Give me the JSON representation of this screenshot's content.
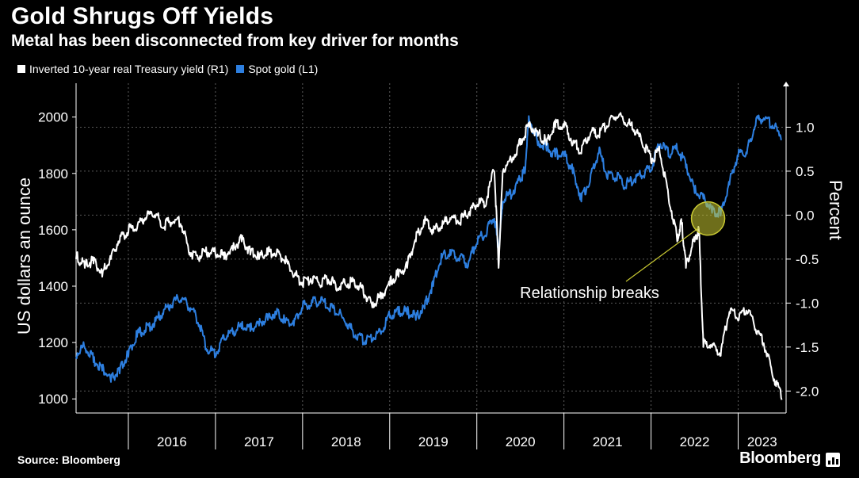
{
  "header": {
    "title": "Gold Shrugs Off Yields",
    "subtitle": "Metal has been disconnected from key driver for months"
  },
  "legend": {
    "yield_label": "Inverted 10-year real Treasury yield (R1)",
    "gold_label": "Spot gold (L1)"
  },
  "footer": {
    "source": "Source: Bloomberg",
    "brand": "Bloomberg"
  },
  "colors": {
    "background": "#000000",
    "gold_series": "#2d7fe0",
    "yield_series": "#ffffff",
    "annotation_circle": "#c8c832",
    "grid": "#5a5a5a"
  },
  "chart_data": {
    "type": "line",
    "title": "Gold Shrugs Off Yields",
    "subtitle": "Metal has been disconnected from key driver for months",
    "xlabel": "",
    "ylabel_left": "US dollars an ounce",
    "ylabel_right": "Percent",
    "x_range": [
      2015.4,
      2023.55
    ],
    "ylim_left": [
      950,
      2120
    ],
    "ylim_right": [
      -2.25,
      1.5
    ],
    "left_ticks": [
      1000,
      1200,
      1400,
      1600,
      1800,
      2000
    ],
    "right_ticks": [
      -2.0,
      -1.5,
      -1.0,
      -0.5,
      0.0,
      0.5,
      1.0
    ],
    "right_tick_labels": [
      "-2.0",
      "-1.5",
      "-1.0",
      "-0.5",
      "0.0",
      "0.5",
      "1.0"
    ],
    "year_labels": [
      "2016",
      "2017",
      "2018",
      "2019",
      "2020",
      "2021",
      "2022",
      "2023"
    ],
    "series": [
      {
        "name": "Spot gold (L1)",
        "axis": "left",
        "x": [
          2015.4,
          2015.5,
          2015.6,
          2015.7,
          2015.8,
          2015.9,
          2016.0,
          2016.1,
          2016.2,
          2016.3,
          2016.4,
          2016.5,
          2016.6,
          2016.7,
          2016.8,
          2016.9,
          2017.0,
          2017.1,
          2017.2,
          2017.3,
          2017.4,
          2017.5,
          2017.6,
          2017.7,
          2017.8,
          2017.9,
          2018.0,
          2018.1,
          2018.2,
          2018.3,
          2018.4,
          2018.5,
          2018.6,
          2018.7,
          2018.8,
          2018.9,
          2019.0,
          2019.1,
          2019.2,
          2019.3,
          2019.4,
          2019.5,
          2019.6,
          2019.7,
          2019.8,
          2019.9,
          2020.0,
          2020.1,
          2020.2,
          2020.25,
          2020.3,
          2020.4,
          2020.5,
          2020.55,
          2020.6,
          2020.7,
          2020.8,
          2020.9,
          2021.0,
          2021.1,
          2021.2,
          2021.3,
          2021.4,
          2021.5,
          2021.6,
          2021.7,
          2021.8,
          2021.9,
          2022.0,
          2022.1,
          2022.2,
          2022.3,
          2022.4,
          2022.5,
          2022.6,
          2022.7,
          2022.8,
          2022.9,
          2023.0,
          2023.1,
          2023.2,
          2023.3,
          2023.4,
          2023.5
        ],
        "values": [
          1150,
          1180,
          1130,
          1100,
          1060,
          1090,
          1150,
          1220,
          1240,
          1260,
          1300,
          1330,
          1350,
          1320,
          1270,
          1170,
          1150,
          1210,
          1230,
          1250,
          1240,
          1260,
          1280,
          1300,
          1270,
          1260,
          1320,
          1330,
          1340,
          1320,
          1300,
          1260,
          1220,
          1200,
          1210,
          1230,
          1290,
          1300,
          1300,
          1280,
          1320,
          1400,
          1500,
          1510,
          1490,
          1470,
          1550,
          1580,
          1640,
          1520,
          1700,
          1720,
          1770,
          1800,
          1990,
          1900,
          1880,
          1860,
          1860,
          1800,
          1700,
          1770,
          1870,
          1780,
          1780,
          1750,
          1770,
          1790,
          1810,
          1900,
          1860,
          1880,
          1820,
          1730,
          1710,
          1660,
          1650,
          1760,
          1860,
          1870,
          1970,
          1990,
          1960,
          1920
        ]
      },
      {
        "name": "Inverted 10-year real Treasury yield (R1)",
        "axis": "right",
        "x": [
          2015.4,
          2015.5,
          2015.6,
          2015.7,
          2015.8,
          2015.9,
          2016.0,
          2016.1,
          2016.2,
          2016.3,
          2016.4,
          2016.5,
          2016.6,
          2016.7,
          2016.8,
          2016.9,
          2017.0,
          2017.1,
          2017.2,
          2017.3,
          2017.4,
          2017.5,
          2017.6,
          2017.7,
          2017.8,
          2017.9,
          2018.0,
          2018.1,
          2018.2,
          2018.3,
          2018.4,
          2018.5,
          2018.6,
          2018.7,
          2018.8,
          2018.9,
          2019.0,
          2019.1,
          2019.2,
          2019.3,
          2019.4,
          2019.5,
          2019.6,
          2019.7,
          2019.8,
          2019.9,
          2020.0,
          2020.1,
          2020.2,
          2020.25,
          2020.3,
          2020.4,
          2020.5,
          2020.6,
          2020.7,
          2020.8,
          2020.9,
          2021.0,
          2021.1,
          2021.2,
          2021.3,
          2021.4,
          2021.5,
          2021.6,
          2021.7,
          2021.8,
          2021.9,
          2022.0,
          2022.1,
          2022.2,
          2022.3,
          2022.35,
          2022.4,
          2022.5,
          2022.55,
          2022.6,
          2022.7,
          2022.8,
          2022.9,
          2023.0,
          2023.1,
          2023.2,
          2023.3,
          2023.4,
          2023.5
        ],
        "values": [
          -0.5,
          -0.6,
          -0.55,
          -0.7,
          -0.5,
          -0.3,
          -0.2,
          -0.15,
          -0.05,
          0.0,
          -0.15,
          -0.1,
          -0.1,
          -0.45,
          -0.5,
          -0.45,
          -0.45,
          -0.5,
          -0.4,
          -0.3,
          -0.45,
          -0.5,
          -0.45,
          -0.45,
          -0.55,
          -0.7,
          -0.8,
          -0.75,
          -0.8,
          -0.75,
          -0.85,
          -0.8,
          -0.8,
          -0.9,
          -1.05,
          -0.95,
          -0.8,
          -0.7,
          -0.6,
          -0.3,
          -0.1,
          -0.2,
          -0.15,
          -0.05,
          -0.1,
          0.0,
          0.1,
          0.1,
          0.5,
          -0.6,
          0.5,
          0.6,
          0.8,
          1.0,
          0.9,
          0.8,
          1.0,
          1.0,
          0.8,
          0.7,
          0.9,
          0.9,
          1.0,
          1.1,
          1.05,
          0.95,
          0.8,
          0.6,
          0.7,
          0.2,
          -0.3,
          -0.1,
          -0.6,
          -0.3,
          -0.2,
          -1.5,
          -1.5,
          -1.6,
          -1.1,
          -1.2,
          -1.1,
          -1.3,
          -1.5,
          -1.85,
          -2.1
        ]
      }
    ],
    "annotation": {
      "label": "Relationship breaks",
      "x": 2022.6,
      "y_left": 1640
    }
  }
}
